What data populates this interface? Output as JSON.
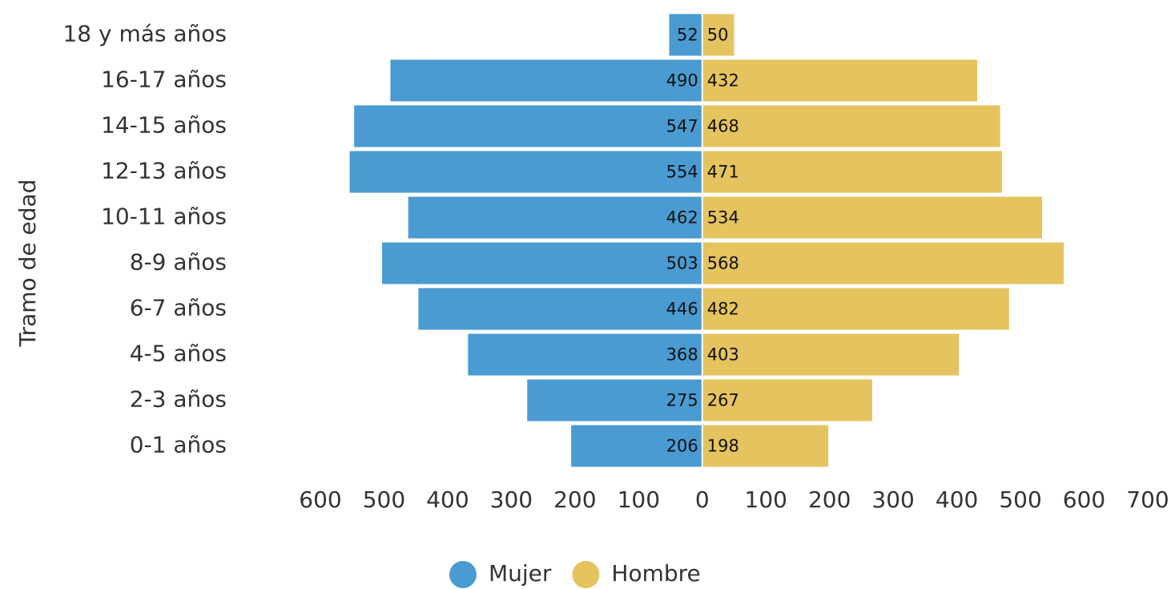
{
  "chart_data": {
    "type": "pyramid",
    "ylabel": "Tramo de edad",
    "categories": [
      "18 y más años",
      "16-17 años",
      "14-15 años",
      "12-13 años",
      "10-11 años",
      "8-9 años",
      "6-7 años",
      "4-5 años",
      "2-3 años",
      "0-1 años"
    ],
    "series": [
      {
        "name": "Mujer",
        "color": "#4a9bd1",
        "values": [
          52,
          490,
          547,
          554,
          462,
          503,
          446,
          368,
          275,
          206
        ]
      },
      {
        "name": "Hombre",
        "color": "#e5c35e",
        "values": [
          50,
          432,
          468,
          471,
          534,
          568,
          482,
          403,
          267,
          198
        ]
      }
    ],
    "xlim": [
      -600,
      700
    ],
    "xticks": [
      {
        "value": -600,
        "label": "600"
      },
      {
        "value": -500,
        "label": "500"
      },
      {
        "value": -400,
        "label": "400"
      },
      {
        "value": -300,
        "label": "300"
      },
      {
        "value": -200,
        "label": "200"
      },
      {
        "value": -100,
        "label": "100"
      },
      0,
      100,
      200,
      300,
      400,
      500,
      600,
      700
    ],
    "legend": "bottom"
  }
}
